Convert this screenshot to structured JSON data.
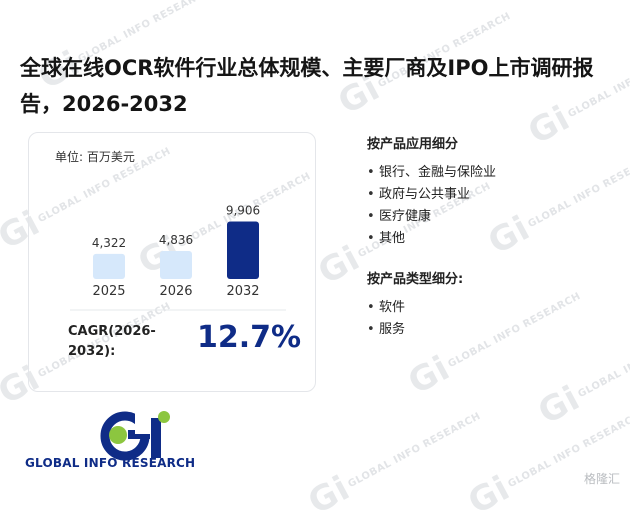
{
  "title": "全球在线OCR软件行业总体规模、主要厂商及IPO上市调研报告，2026-2032",
  "unit_label": "单位: 百万美元",
  "chart_data": {
    "type": "bar",
    "categories": [
      "2025",
      "2026",
      "2032"
    ],
    "values": [
      4322,
      4836,
      9906
    ],
    "value_labels": [
      "4,322",
      "4,836",
      "9,906"
    ],
    "ylim": [
      0,
      10000
    ],
    "colors": [
      "#d6e8fb",
      "#d6e8fb",
      "#0f2c87"
    ],
    "title": "",
    "xlabel": "",
    "ylabel": ""
  },
  "cagr": {
    "label": "CAGR(2026-2032):",
    "value": "12.7%"
  },
  "application_section": {
    "title": "按产品应用细分",
    "items": [
      "银行、金融与保险业",
      "政府与公共事业",
      "医疗健康",
      "其他"
    ]
  },
  "type_section": {
    "title": "按产品类型细分:",
    "items": [
      "软件",
      "服务"
    ]
  },
  "logo": {
    "text": "GLOBAL INFO RESEARCH"
  },
  "watermark": {
    "text": "GLOBAL INFO RESEARCH",
    "mark": "Gi"
  },
  "corner_badge": "格隆汇",
  "colors": {
    "brand_navy": "#0f2c87",
    "brand_green": "#8cc63f",
    "light_bar": "#d6e8fb"
  }
}
